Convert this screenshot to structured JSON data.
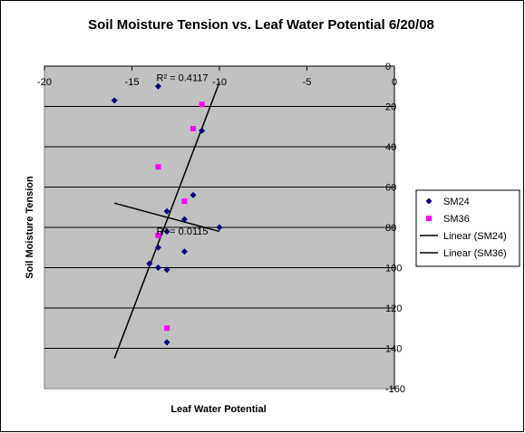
{
  "chart_data": {
    "type": "scatter",
    "title": "Soil Moisture Tension vs. Leaf Water Potential 6/20/08",
    "xlabel": "Leaf Water Potential",
    "ylabel": "Soil Moisture Tension",
    "xlim": [
      -20,
      0
    ],
    "ylim": [
      -160,
      0
    ],
    "x_ticks": [
      -20,
      -15,
      -10,
      -5,
      0
    ],
    "y_ticks": [
      0,
      20,
      40,
      60,
      80,
      100,
      120,
      140,
      160
    ],
    "y_tick_labels": [
      "0",
      "20",
      "40",
      "60",
      "80",
      "100",
      "120",
      "140",
      "-160"
    ],
    "grid": true,
    "legend_position": "right",
    "series": [
      {
        "name": "SM24",
        "marker": "diamond",
        "color": "#000080",
        "points": [
          {
            "x": -16,
            "y": -17
          },
          {
            "x": -13.5,
            "y": -10
          },
          {
            "x": -11,
            "y": -32
          },
          {
            "x": -11.5,
            "y": -64
          },
          {
            "x": -13,
            "y": -72
          },
          {
            "x": -12,
            "y": -76
          },
          {
            "x": -13,
            "y": -82
          },
          {
            "x": -13.5,
            "y": -84
          },
          {
            "x": -10,
            "y": -80
          },
          {
            "x": -13.5,
            "y": -90
          },
          {
            "x": -12,
            "y": -92
          },
          {
            "x": -14,
            "y": -98
          },
          {
            "x": -13.5,
            "y": -100
          },
          {
            "x": -13,
            "y": -101
          },
          {
            "x": -13,
            "y": -137
          }
        ]
      },
      {
        "name": "SM36",
        "marker": "square",
        "color": "#ff00ff",
        "points": [
          {
            "x": -11,
            "y": -19
          },
          {
            "x": -11.5,
            "y": -31
          },
          {
            "x": -13.5,
            "y": -50
          },
          {
            "x": -12,
            "y": -67
          },
          {
            "x": -13.5,
            "y": -84
          },
          {
            "x": -13,
            "y": -130
          }
        ]
      }
    ],
    "trendlines": [
      {
        "name": "Linear (SM24)",
        "color": "#000000",
        "from": {
          "x": -16,
          "y": -145
        },
        "to": {
          "x": -10,
          "y": -8
        }
      },
      {
        "name": "Linear (SM36)",
        "color": "#000000",
        "from": {
          "x": -16,
          "y": -68
        },
        "to": {
          "x": -10,
          "y": -82
        }
      }
    ],
    "annotations": [
      {
        "text": "R² = 0.4117",
        "x": -13.6,
        "y": -7.5
      },
      {
        "text": "R² = 0.0115",
        "x": -13.6,
        "y": -83.5
      }
    ],
    "legend": [
      "SM24",
      "SM36",
      "Linear (SM24)",
      "Linear (SM36)"
    ]
  }
}
